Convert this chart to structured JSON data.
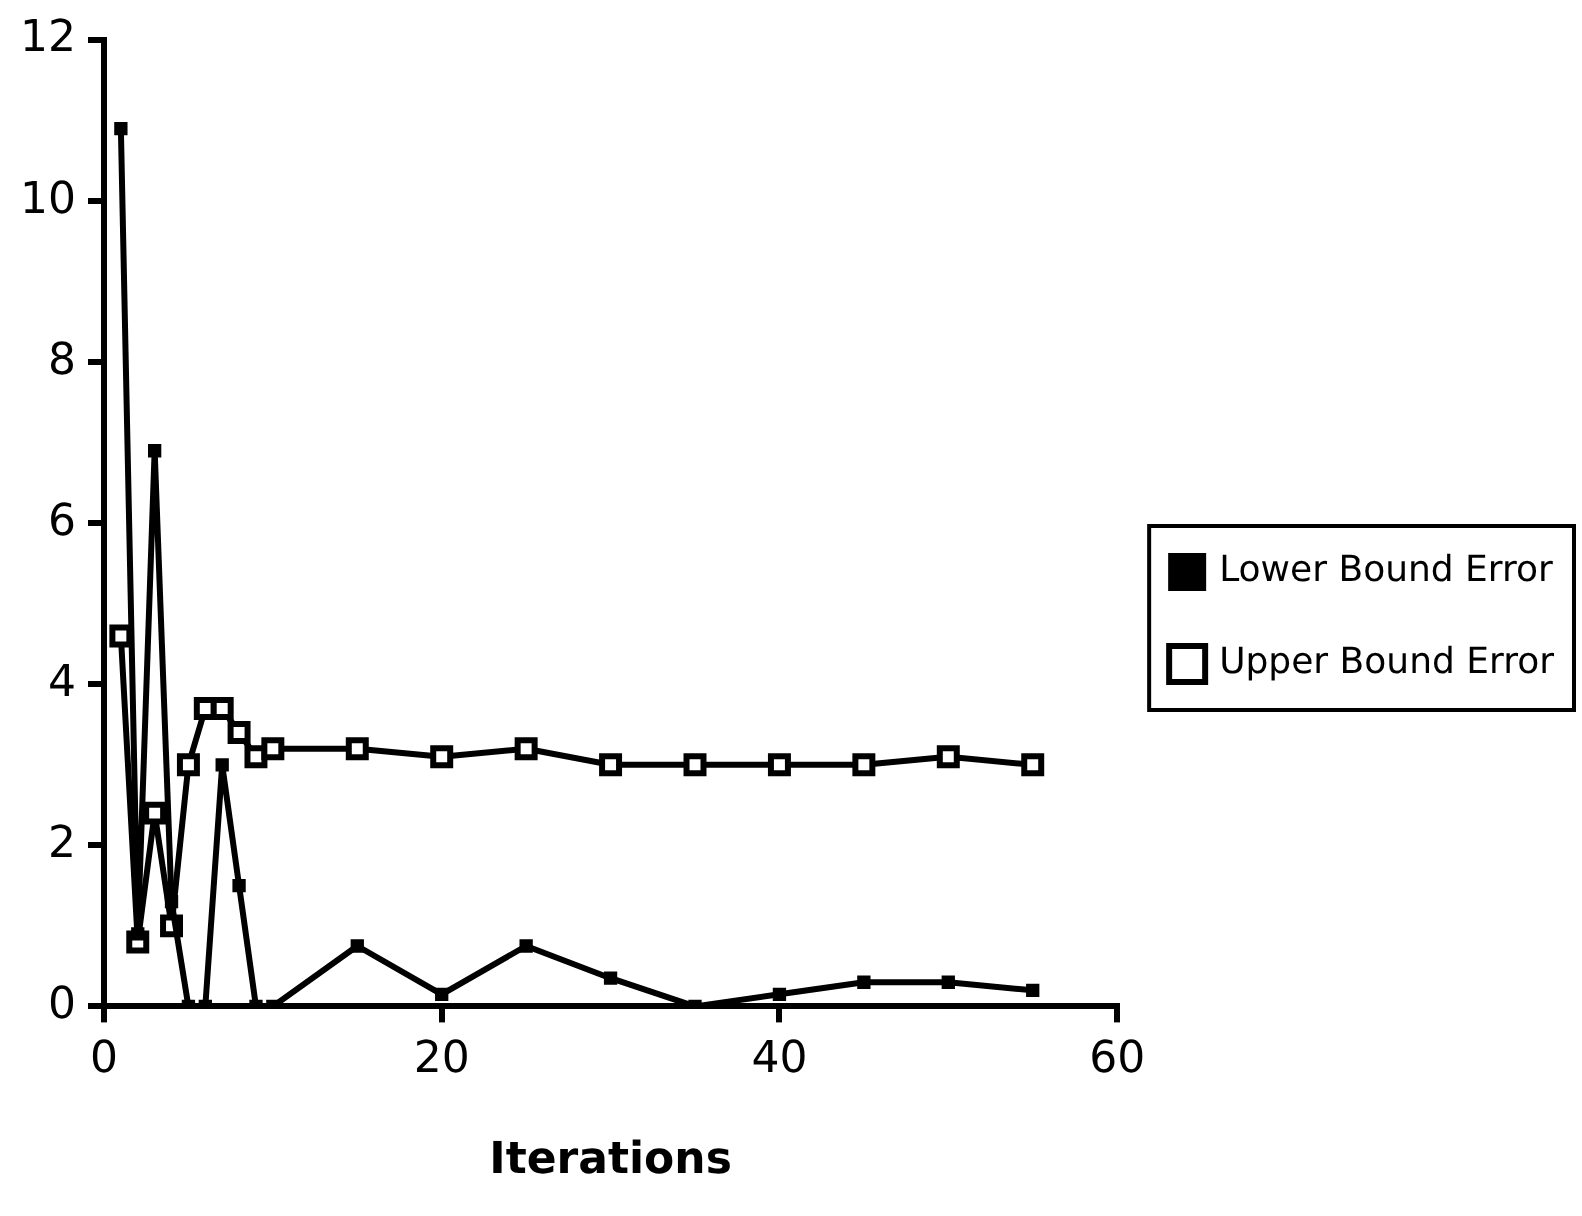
{
  "chart_data": {
    "type": "line",
    "xlabel": "Iterations",
    "xlim": [
      0,
      60
    ],
    "xticks": [
      0,
      20,
      40,
      60
    ],
    "ylim": [
      0,
      12
    ],
    "yticks": [
      0,
      2,
      4,
      6,
      8,
      10,
      12
    ],
    "grid": false,
    "legend": "right",
    "marker": "square",
    "line_style": "solid",
    "series": [
      {
        "name": "Lower Bound Error",
        "color": "#000000",
        "x": [
          1,
          2,
          3,
          4,
          5,
          6,
          7,
          8,
          9,
          10,
          15,
          20,
          25,
          30,
          35,
          40,
          45,
          50,
          55
        ],
        "values": [
          10.9,
          0.9,
          6.9,
          1.3,
          0,
          0,
          3,
          1.5,
          0,
          0,
          0.75,
          0.15,
          0.75,
          0.35,
          0,
          0.15,
          0.3,
          0.3,
          0.2
        ]
      },
      {
        "name": "Upper Bound Error",
        "color": "#000000",
        "x": [
          1,
          2,
          3,
          4,
          5,
          6,
          7,
          8,
          9,
          10,
          15,
          20,
          25,
          30,
          35,
          40,
          45,
          50,
          55
        ],
        "values": [
          4.6,
          0.8,
          2.4,
          1,
          3,
          3.7,
          3.7,
          3.4,
          3.1,
          3.2,
          3.2,
          3.1,
          3.2,
          3,
          3,
          3,
          3,
          3.1,
          3
        ]
      }
    ]
  }
}
